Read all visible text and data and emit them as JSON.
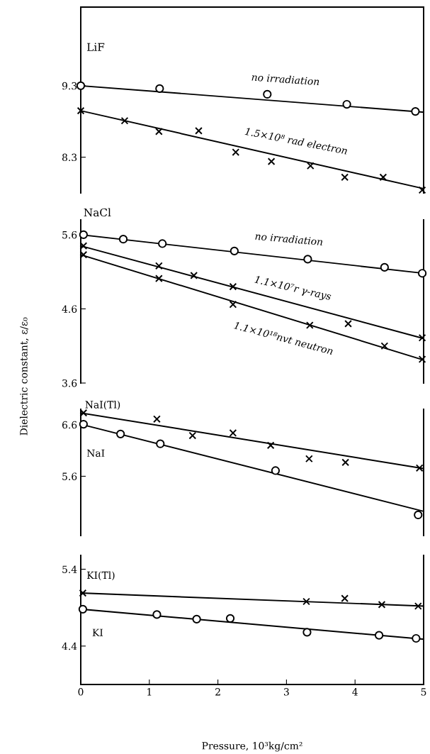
{
  "chart_data": [
    {
      "type": "scatter",
      "title": "LiF",
      "xlim": [
        0,
        5
      ],
      "ylim": [
        7.8,
        10.4
      ],
      "yticks": [
        8.3,
        9.3
      ],
      "tick_labels": "y",
      "grid": false,
      "legend": false,
      "series": [
        {
          "name": "no irradiation",
          "color": "#000000",
          "marker": "circle",
          "x": [
            0,
            1.15,
            2.72,
            3.88,
            4.88
          ],
          "values": [
            9.3,
            9.26,
            9.18,
            9.04,
            8.94
          ]
        },
        {
          "type": "line",
          "color": "#000000",
          "x": [
            0,
            5
          ],
          "values": [
            9.3,
            8.93
          ]
        },
        {
          "name": "1.5×10⁸ rad electron",
          "color": "#000000",
          "marker": "cross",
          "x": [
            0,
            0.64,
            1.14,
            1.72,
            2.26,
            2.78,
            3.35,
            3.85,
            4.41,
            4.98
          ],
          "values": [
            8.95,
            8.81,
            8.66,
            8.67,
            8.37,
            8.24,
            8.18,
            8.02,
            8.02,
            7.84
          ]
        },
        {
          "type": "line",
          "color": "#000000",
          "x": [
            0,
            5
          ],
          "values": [
            8.95,
            7.86
          ]
        }
      ]
    },
    {
      "type": "scatter",
      "title": "NaCl",
      "ylabel": "Dielectric constant, ε/ε₀",
      "xlim": [
        0,
        5
      ],
      "ylim": [
        3.6,
        5.8
      ],
      "yticks": [
        3.6,
        4.6,
        5.6
      ],
      "tick_labels": "y",
      "grid": false,
      "legend": false,
      "series": [
        {
          "name": "no irradiation",
          "color": "#000000",
          "marker": "circle",
          "x": [
            0.04,
            0.62,
            1.19,
            2.24,
            3.31,
            4.43,
            4.98
          ],
          "values": [
            5.6,
            5.54,
            5.48,
            5.38,
            5.27,
            5.16,
            5.08
          ]
        },
        {
          "type": "line",
          "color": "#000000",
          "x": [
            0,
            5
          ],
          "values": [
            5.6,
            5.08
          ]
        },
        {
          "name": "1.1×10⁷r γ-rays",
          "color": "#000000",
          "marker": "cross",
          "x": [
            0.04,
            1.14,
            1.65,
            2.22,
            3.9,
            4.98
          ],
          "values": [
            5.45,
            5.18,
            5.05,
            4.9,
            4.4,
            4.21
          ]
        },
        {
          "type": "line",
          "color": "#000000",
          "x": [
            0,
            5
          ],
          "values": [
            5.45,
            4.2
          ]
        },
        {
          "name": "1.1×10¹⁸nvt neutron",
          "color": "#000000",
          "marker": "cross",
          "x": [
            0.04,
            1.14,
            2.22,
            3.34,
            4.43,
            4.98
          ],
          "values": [
            5.33,
            5.01,
            4.66,
            4.38,
            4.1,
            3.92
          ]
        },
        {
          "type": "line",
          "color": "#000000",
          "x": [
            0,
            5
          ],
          "values": [
            5.33,
            3.91
          ]
        }
      ]
    },
    {
      "type": "scatter",
      "xlim": [
        0,
        5
      ],
      "ylim": [
        4.45,
        6.9
      ],
      "yticks": [
        5.6,
        6.6
      ],
      "tick_labels": "y",
      "grid": false,
      "legend": false,
      "series": [
        {
          "name": "NaI(Tl)",
          "color": "#000000",
          "marker": "cross",
          "x": [
            0.04,
            1.11,
            1.63,
            2.22,
            2.77,
            3.33,
            3.86,
            4.94
          ],
          "values": [
            6.83,
            6.71,
            6.39,
            6.44,
            6.2,
            5.94,
            5.87,
            5.76
          ]
        },
        {
          "type": "line",
          "color": "#000000",
          "x": [
            0,
            5
          ],
          "values": [
            6.83,
            5.75
          ]
        },
        {
          "name": "NaI",
          "color": "#000000",
          "marker": "circle",
          "x": [
            0.04,
            0.58,
            1.16,
            2.84,
            4.92
          ],
          "values": [
            6.61,
            6.42,
            6.23,
            5.71,
            4.85
          ]
        },
        {
          "type": "line",
          "color": "#000000",
          "x": [
            0,
            5
          ],
          "values": [
            6.61,
            4.92
          ]
        }
      ]
    },
    {
      "type": "scatter",
      "xlabel": "Pressure, 10³kg/cm²",
      "xlim": [
        0,
        5
      ],
      "xticks": [
        0,
        1,
        2,
        3,
        4,
        5
      ],
      "ylim": [
        3.9,
        5.58
      ],
      "yticks": [
        4.4,
        5.4
      ],
      "grid": false,
      "legend": false,
      "series": [
        {
          "name": "KI(Tl)",
          "color": "#000000",
          "marker": "cross",
          "x": [
            0.03,
            3.29,
            3.85,
            4.39,
            4.92
          ],
          "values": [
            5.09,
            4.98,
            5.02,
            4.94,
            4.92
          ]
        },
        {
          "type": "line",
          "color": "#000000",
          "x": [
            0,
            5
          ],
          "values": [
            5.09,
            4.92
          ]
        },
        {
          "name": "KI",
          "color": "#000000",
          "marker": "circle",
          "x": [
            0.03,
            1.11,
            1.69,
            2.18,
            3.3,
            4.35,
            4.89
          ],
          "values": [
            4.88,
            4.81,
            4.75,
            4.76,
            4.58,
            4.54,
            4.5
          ]
        },
        {
          "type": "line",
          "color": "#000000",
          "x": [
            0,
            5
          ],
          "values": [
            4.88,
            4.49
          ]
        }
      ]
    }
  ]
}
